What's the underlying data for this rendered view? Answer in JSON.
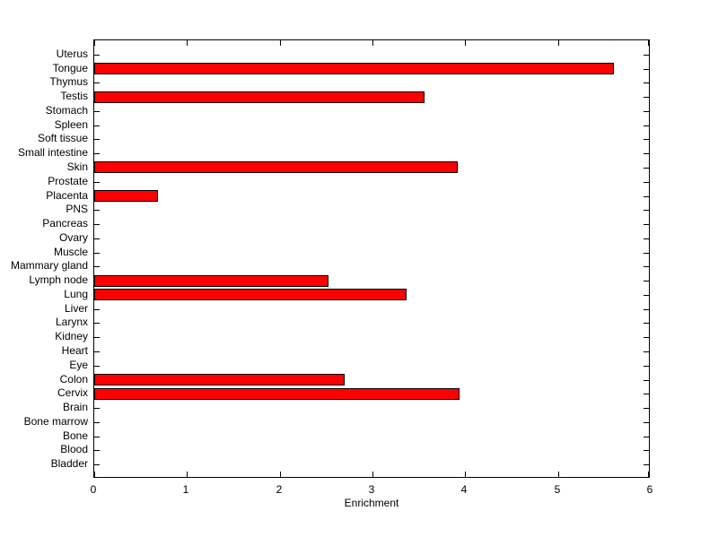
{
  "figure": {
    "background_color": "#ffffff",
    "axes_color": "#000000"
  },
  "chart_data": {
    "type": "bar",
    "orientation": "horizontal",
    "title": "",
    "xlabel": "Enrichment",
    "ylabel": "",
    "categories": [
      "Uterus",
      "Tongue",
      "Thymus",
      "Testis",
      "Stomach",
      "Spleen",
      "Soft tissue",
      "Small intestine",
      "Skin",
      "Prostate",
      "Placenta",
      "PNS",
      "Pancreas",
      "Ovary",
      "Muscle",
      "Mammary gland",
      "Lymph node",
      "Lung",
      "Liver",
      "Larynx",
      "Kidney",
      "Heart",
      "Eye",
      "Colon",
      "Cervix",
      "Brain",
      "Bone marrow",
      "Bone",
      "Blood",
      "Bladder"
    ],
    "values": [
      0,
      5.6,
      0,
      3.56,
      0,
      0,
      0,
      0,
      3.92,
      0,
      0.69,
      0,
      0,
      0,
      0,
      0,
      2.53,
      3.37,
      0,
      0,
      0,
      0,
      0,
      2.7,
      3.94,
      0,
      0,
      0,
      0,
      0
    ],
    "xlim": [
      0,
      6
    ],
    "x_ticks": [
      0,
      1,
      2,
      3,
      4,
      5,
      6
    ],
    "grid": false,
    "legend": null,
    "bar_color": "#ff0000",
    "bar_edge_color": "#000000"
  }
}
